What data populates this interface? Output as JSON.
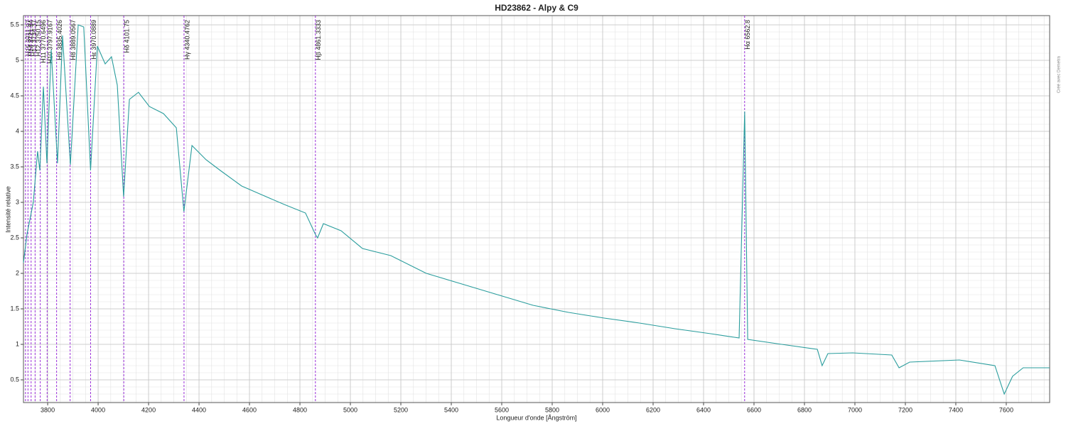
{
  "chart_data": {
    "type": "line",
    "title": "HD23862 - Alpy & C9",
    "x_label": "Longueur d'onde [Ångström]",
    "y_label": "Intensité relative",
    "note": "Créé avec Demetra",
    "xlim": [
      3704,
      7772
    ],
    "ylim": [
      0.18,
      5.63
    ],
    "xticks": [
      3800,
      4000,
      4200,
      4400,
      4600,
      4800,
      5000,
      5200,
      5400,
      5600,
      5800,
      6000,
      6200,
      6400,
      6600,
      6800,
      7000,
      7200,
      7400,
      7600
    ],
    "yticks": [
      0.5,
      1,
      1.5,
      2,
      2.5,
      3,
      3.5,
      4,
      4.5,
      5,
      5.5
    ],
    "grid": true,
    "minor_grid": true,
    "series": [
      {
        "color": "#2a9d9d",
        "x": [
          3704,
          3718,
          3743,
          3760,
          3769,
          3783,
          3797,
          3814,
          3839,
          3859,
          3890,
          3921,
          3943,
          3970,
          3997,
          4028,
          4053,
          4076,
          4101,
          4124,
          4160,
          4203,
          4259,
          4310,
          4340,
          4372,
          4428,
          4484,
          4569,
          4653,
          4738,
          4822,
          4861,
          4870,
          4893,
          4963,
          5048,
          5160,
          5301,
          5442,
          5583,
          5724,
          5865,
          6006,
          6146,
          6287,
          6428,
          6541,
          6563,
          6575,
          6710,
          6851,
          6870,
          6893,
          6991,
          7146,
          7175,
          7217,
          7414,
          7555,
          7592,
          7625,
          7667,
          7772
        ],
        "values": [
          2.15,
          2.55,
          3.0,
          3.72,
          3.45,
          4.63,
          3.55,
          5.15,
          3.55,
          5.35,
          3.53,
          5.5,
          5.47,
          3.45,
          5.2,
          4.95,
          5.05,
          4.65,
          3.08,
          4.45,
          4.55,
          4.35,
          4.25,
          4.05,
          2.87,
          3.8,
          3.6,
          3.45,
          3.23,
          3.1,
          2.97,
          2.85,
          2.55,
          2.5,
          2.7,
          2.6,
          2.35,
          2.25,
          2.0,
          1.85,
          1.7,
          1.55,
          1.45,
          1.37,
          1.3,
          1.22,
          1.15,
          1.09,
          4.28,
          1.07,
          1.0,
          0.93,
          0.7,
          0.87,
          0.88,
          0.85,
          0.67,
          0.75,
          0.78,
          0.7,
          0.3,
          0.55,
          0.67,
          0.67
        ]
      }
    ],
    "annotations": [
      {
        "x": 3711.97,
        "label": "H15 3711.97"
      },
      {
        "x": 3721.94,
        "label": "H14 3721.94"
      },
      {
        "x": 3734.37,
        "label": "H13 3734.37"
      },
      {
        "x": 3750.15,
        "label": "H12 3750.15"
      },
      {
        "x": 3770.6496,
        "label": "H11 3770.6496"
      },
      {
        "x": 3797.9167,
        "label": "H10 3797.9167"
      },
      {
        "x": 3835.4026,
        "label": "H9 3835.4026"
      },
      {
        "x": 3889.0567,
        "label": "H8 3889.0567"
      },
      {
        "x": 3970.0889,
        "label": "Hε 3970.0889"
      },
      {
        "x": 4101.75,
        "label": "Hδ 4101.75"
      },
      {
        "x": 4340.4762,
        "label": "Hγ 4340.4762"
      },
      {
        "x": 4861.3333,
        "label": "Hβ 4861.3333"
      },
      {
        "x": 6562.8,
        "label": "Hα 6562.8"
      }
    ],
    "annotation_color": "#9b30d9"
  }
}
